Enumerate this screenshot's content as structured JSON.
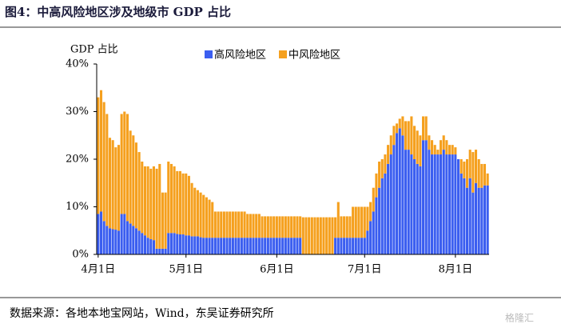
{
  "title": "图4：中高风险地区涉及地级市 GDP 占比",
  "source": "数据来源：各地本地宝网站，Wind，东吴证券研究所",
  "watermark": "格隆汇",
  "chart_data": {
    "type": "stacked_bar",
    "ylabel": "GDP 占比",
    "categories": [
      "4月1日",
      null,
      null,
      null,
      null,
      null,
      null,
      null,
      null,
      null,
      null,
      null,
      null,
      null,
      null,
      null,
      null,
      null,
      null,
      null,
      null,
      null,
      null,
      null,
      null,
      null,
      null,
      null,
      null,
      null,
      "5月1日",
      null,
      null,
      null,
      null,
      null,
      null,
      null,
      null,
      null,
      null,
      null,
      null,
      null,
      null,
      null,
      null,
      null,
      null,
      null,
      null,
      null,
      null,
      null,
      null,
      null,
      null,
      null,
      null,
      null,
      null,
      "6月1日",
      null,
      null,
      null,
      null,
      null,
      null,
      null,
      null,
      null,
      null,
      null,
      null,
      null,
      null,
      null,
      null,
      null,
      null,
      null,
      null,
      null,
      null,
      null,
      null,
      null,
      null,
      null,
      null,
      null,
      "7月1日",
      null,
      null,
      null,
      null,
      null,
      null,
      null,
      null,
      null,
      null,
      null,
      null,
      null,
      null,
      null,
      null,
      null,
      null,
      null,
      null,
      null,
      null,
      null,
      null,
      null,
      null,
      null,
      null,
      null,
      null,
      "8月1日",
      null,
      null,
      null,
      null,
      null,
      null,
      null,
      null,
      null,
      null,
      null
    ],
    "series": [
      {
        "name": "高风险地区",
        "color": "#3b5ef0",
        "values": [
          8.5,
          9,
          7,
          6,
          5.5,
          5.3,
          5.2,
          5,
          8.5,
          8.5,
          7,
          6.5,
          6,
          5.5,
          5,
          4.5,
          4,
          3.5,
          3.2,
          3,
          1.2,
          1.2,
          1.2,
          1.2,
          4.5,
          4.5,
          4.5,
          4.3,
          4.2,
          4.2,
          4,
          4,
          3.8,
          3.8,
          3.8,
          3.6,
          3.5,
          3.5,
          3.5,
          3.5,
          3.5,
          3.5,
          3.5,
          3.5,
          3.5,
          3.5,
          3.5,
          3.5,
          3.5,
          3.5,
          3.5,
          3.5,
          3.5,
          3.5,
          3.5,
          3.5,
          3.5,
          3.5,
          3.5,
          3.5,
          3.5,
          3.5,
          3.5,
          3.5,
          3.5,
          3.5,
          3.5,
          3.5,
          3.5,
          3.5,
          0,
          0,
          0,
          0,
          0,
          0,
          0,
          0,
          0,
          0,
          0,
          3.5,
          3.5,
          3.5,
          3.5,
          3.5,
          3.5,
          3.5,
          3.5,
          3.5,
          3.5,
          3.5,
          5,
          7,
          9,
          12,
          14,
          16,
          17,
          19,
          21,
          23,
          25.5,
          26.5,
          25,
          22,
          22,
          21,
          20,
          19,
          18.5,
          24,
          24,
          22,
          21,
          21,
          21,
          21,
          22,
          21,
          21,
          21,
          21,
          20,
          17,
          16,
          14,
          16,
          13,
          15,
          14,
          14,
          14.5,
          14.5
        ]
      },
      {
        "name": "中风险地区",
        "color": "#f5a01e",
        "values": [
          24.5,
          25.5,
          25,
          23.5,
          19,
          18.7,
          17.3,
          18,
          21,
          21.5,
          22.5,
          19.5,
          19,
          18,
          16.5,
          15,
          14.5,
          15,
          14.8,
          15.5,
          16.8,
          17.8,
          11.8,
          11.8,
          15,
          14.5,
          14,
          13.2,
          13.3,
          12.8,
          13,
          12.5,
          11.2,
          10.2,
          9.7,
          9.4,
          9,
          8.5,
          8,
          7.5,
          5.5,
          5.5,
          5.5,
          5.5,
          5.5,
          5.5,
          5.5,
          5.5,
          5.5,
          5.5,
          5.5,
          5,
          5,
          5,
          5,
          5,
          4.5,
          4.5,
          4.5,
          4.5,
          4.5,
          4.5,
          4.5,
          4.5,
          4.5,
          4.5,
          4.5,
          4.5,
          4.5,
          4.5,
          7.8,
          7.8,
          7.8,
          7.8,
          7.8,
          7.8,
          7.8,
          7.8,
          7.8,
          7.8,
          7.8,
          4.3,
          7.5,
          4.5,
          4.5,
          4.5,
          4.5,
          6.5,
          6.5,
          6.5,
          6.5,
          6.5,
          5,
          4,
          5,
          5,
          5.5,
          4,
          4,
          4,
          4,
          4,
          2,
          2,
          4,
          6,
          6,
          8,
          7,
          7,
          6.5,
          5,
          5,
          3,
          3,
          2,
          1,
          3,
          3,
          3,
          2,
          2,
          1.5,
          0,
          3,
          3.5,
          6,
          6,
          8.5,
          7,
          6,
          5,
          4.5,
          2.5
        ]
      }
    ],
    "ylim": [
      0,
      40
    ],
    "yticks": [
      {
        "value": 0,
        "label": "0%"
      },
      {
        "value": 10,
        "label": "10%"
      },
      {
        "value": 20,
        "label": "20%"
      },
      {
        "value": 30,
        "label": "30%"
      },
      {
        "value": 40,
        "label": "40%"
      }
    ],
    "grid": false,
    "legend": "top"
  }
}
